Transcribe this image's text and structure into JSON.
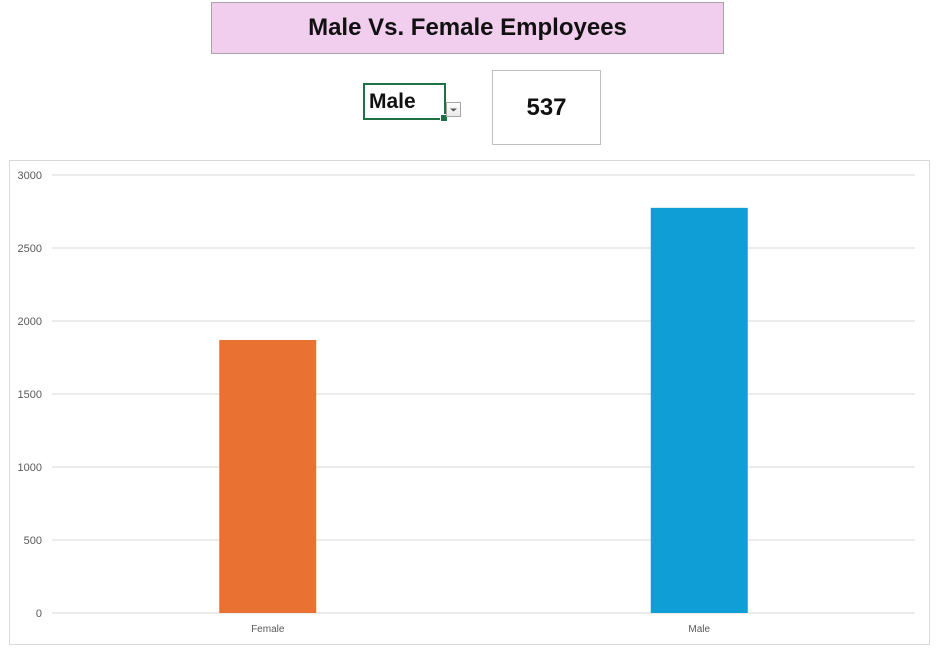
{
  "header": {
    "title": "Male Vs. Female Employees"
  },
  "filter": {
    "selected_value": "Male",
    "icon": "chevron-down-icon"
  },
  "count_card": {
    "value": "537"
  },
  "colors": {
    "title_background": "#f1cdee",
    "female_bar": "#e97132",
    "male_bar": "#0f9ed5",
    "gridline": "#d9d9d9",
    "cell_border": "#1e7145"
  },
  "chart_data": {
    "type": "bar",
    "categories": [
      "Female",
      "Male"
    ],
    "values": [
      1870,
      2775
    ],
    "colors": [
      "#e97132",
      "#0f9ed5"
    ],
    "title": "",
    "xlabel": "",
    "ylabel": "",
    "ylim": [
      0,
      3000
    ],
    "yticks": [
      0,
      500,
      1000,
      1500,
      2000,
      2500,
      3000
    ],
    "grid": true,
    "legend": "none"
  }
}
